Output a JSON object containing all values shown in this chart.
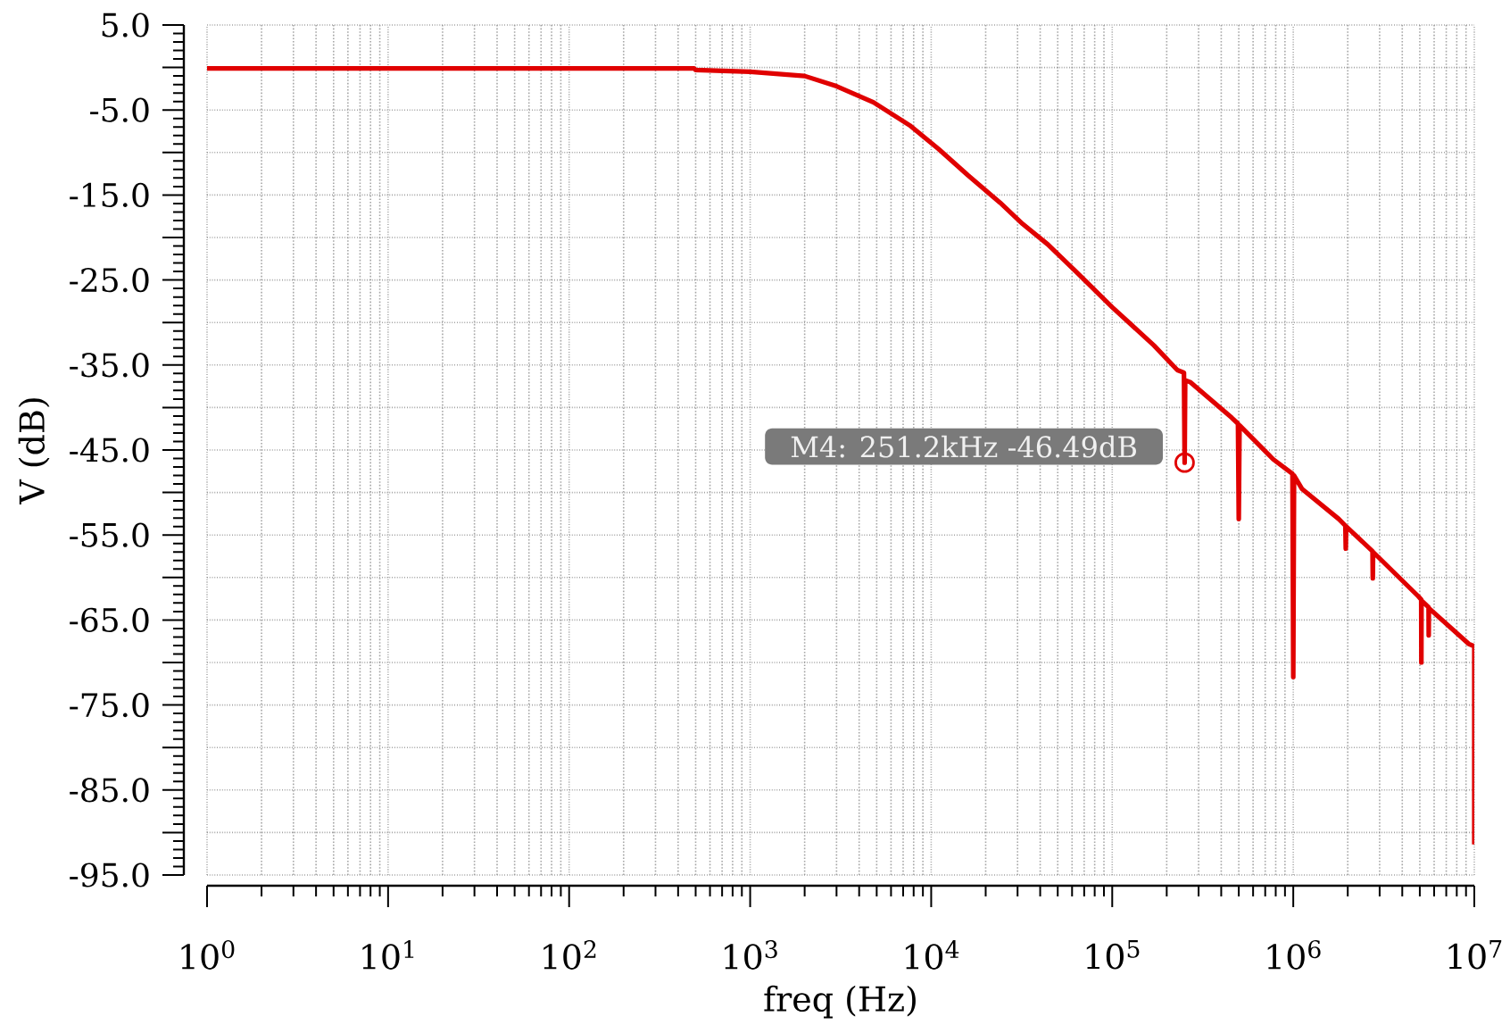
{
  "chart_data": {
    "type": "line",
    "xlabel": "freq (Hz)",
    "ylabel": "V (dB)",
    "x": [
      1,
      490,
      500,
      1000,
      2000,
      3000,
      4800,
      7600,
      11000,
      16000,
      24000,
      32000,
      44000,
      63000,
      100000,
      170000,
      229000,
      249000,
      251200,
      253000,
      269000,
      457000,
      495000,
      500000,
      505000,
      776000,
      990000,
      1000000,
      1010000,
      1120000,
      1780000,
      1940000,
      1950000,
      1960000,
      2740000,
      2750000,
      2760000,
      4900000,
      5090000,
      5100000,
      5110000,
      5590000,
      5600000,
      5610000,
      9300000,
      10000000,
      10000000
    ],
    "series": [
      {
        "color": "#e00000",
        "values": [
          -0.1,
          -0.1,
          -0.3,
          -0.5,
          -1.0,
          -2.2,
          -4.1,
          -6.8,
          -9.6,
          -12.7,
          -15.9,
          -18.4,
          -20.8,
          -24.0,
          -28.2,
          -32.7,
          -35.6,
          -35.9,
          -46.49,
          -36.8,
          -37.0,
          -41.2,
          -41.9,
          -53.1,
          -42.1,
          -46.1,
          -47.8,
          -71.7,
          -48.0,
          -49.6,
          -53.1,
          -53.9,
          -56.6,
          -54.0,
          -56.9,
          -60.1,
          -57.0,
          -62.2,
          -62.6,
          -70.0,
          -62.7,
          -63.5,
          -66.8,
          -63.6,
          -67.8,
          -68.1,
          -91.4
        ]
      }
    ],
    "log": "x",
    "xlim": [
      1,
      10000000
    ],
    "ylim": [
      -95,
      5
    ],
    "xticks": [
      {
        "value": 1,
        "label": "10$^{0}$"
      },
      {
        "value": 10,
        "label": "10$^{1}$"
      },
      {
        "value": 100,
        "label": "10$^{2}$"
      },
      {
        "value": 1000,
        "label": "10$^{3}$"
      },
      {
        "value": 10000,
        "label": "10$^{4}$"
      },
      {
        "value": 100000,
        "label": "10$^{5}$"
      },
      {
        "value": 1000000,
        "label": "10$^{6}$"
      },
      {
        "value": 10000000,
        "label": "10$^{7}$"
      }
    ],
    "yticks": [
      {
        "value": 5,
        "label": "5.0"
      },
      {
        "value": 0,
        "label": null
      },
      {
        "value": -5,
        "label": "-5.0"
      },
      {
        "value": -10,
        "label": null
      },
      {
        "value": -15,
        "label": "-15.0"
      },
      {
        "value": -20,
        "label": null
      },
      {
        "value": -25,
        "label": "-25.0"
      },
      {
        "value": -30,
        "label": null
      },
      {
        "value": -35,
        "label": "-35.0"
      },
      {
        "value": -40,
        "label": null
      },
      {
        "value": -45,
        "label": "-45.0"
      },
      {
        "value": -50,
        "label": null
      },
      {
        "value": -55,
        "label": "-55.0"
      },
      {
        "value": -60,
        "label": null
      },
      {
        "value": -65,
        "label": "-65.0"
      },
      {
        "value": -70,
        "label": null
      },
      {
        "value": -75,
        "label": "-75.0"
      },
      {
        "value": -80,
        "label": null
      },
      {
        "value": -85,
        "label": "-85.0"
      },
      {
        "value": -90,
        "label": null
      },
      {
        "value": -95,
        "label": "-95.0"
      }
    ],
    "grid": true,
    "marker": "none",
    "line_style": "solid",
    "annotations": [
      {
        "text": "M4: 251.2kHz -46.49dB",
        "x": 251200,
        "y": -46.49
      }
    ]
  }
}
